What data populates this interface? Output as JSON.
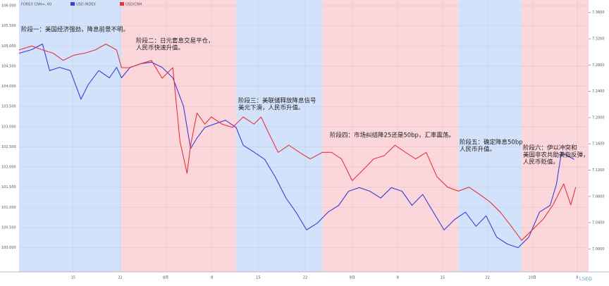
{
  "chart_data": {
    "type": "line",
    "title": "FOREX CNH=, 60",
    "xlim": [
      0,
      80
    ],
    "xticks": [
      {
        "value": 7.6,
        "label": "15"
      },
      {
        "value": 14.2,
        "label": "22"
      },
      {
        "value": 20.6,
        "label": "8月"
      },
      {
        "value": 27.1,
        "label": "8"
      },
      {
        "value": 33.6,
        "label": "15"
      },
      {
        "value": 40.2,
        "label": "22"
      },
      {
        "value": 46.8,
        "label": "9月"
      },
      {
        "value": 53.2,
        "label": "8"
      },
      {
        "value": 59.5,
        "label": "15"
      },
      {
        "value": 65.8,
        "label": "22"
      },
      {
        "value": 72.1,
        "label": "10月"
      },
      {
        "value": 78.4,
        "label": "8"
      }
    ],
    "ylim": [
      99.4,
      106.14
    ],
    "yticks": [
      {
        "value": 100,
        "label": "100.000"
      },
      {
        "value": 100.5,
        "label": "100.500"
      },
      {
        "value": 101,
        "label": "101.000"
      },
      {
        "value": 101.5,
        "label": "101.500"
      },
      {
        "value": 102,
        "label": "102.000"
      },
      {
        "value": 102.5,
        "label": "102.500"
      },
      {
        "value": 103,
        "label": "103.000"
      },
      {
        "value": 103.5,
        "label": "103.500"
      },
      {
        "value": 104,
        "label": "104.000"
      },
      {
        "value": 104.5,
        "label": "104.500"
      },
      {
        "value": 105,
        "label": "105.000"
      },
      {
        "value": 105.5,
        "label": "105.500"
      },
      {
        "value": 106,
        "label": "106.000"
      }
    ],
    "y2lim": [
      6.965,
      7.379
    ],
    "y2ticks": [
      {
        "value": 7,
        "label": "7.0000"
      },
      {
        "value": 7.04,
        "label": "7.0400"
      },
      {
        "value": 7.08,
        "label": "7.0800"
      },
      {
        "value": 7.12,
        "label": "7.1200"
      },
      {
        "value": 7.16,
        "label": "7.1600"
      },
      {
        "value": 7.2,
        "label": "7.2000"
      },
      {
        "value": 7.24,
        "label": "7.2400"
      },
      {
        "value": 7.28,
        "label": "7.2800"
      },
      {
        "value": 7.32,
        "label": "7.3200"
      },
      {
        "value": 7.36,
        "label": "7.3600"
      }
    ],
    "grid": true,
    "series": [
      {
        "name": "USD INDEX",
        "color": "#3a3fd6",
        "x": [
          0,
          1.8,
          3.3,
          4.3,
          5.7,
          7.2,
          8.7,
          9.7,
          11.2,
          12.7,
          13.7,
          14.4,
          15.6,
          17.1,
          18.6,
          20.1,
          21.6,
          23.1,
          24.1,
          25.0,
          26.1,
          27.5,
          29.0,
          30.5,
          31.5,
          33.0,
          34.5,
          36.0,
          37.5,
          38.9,
          40.4,
          41.9,
          43.4,
          44.9,
          46.3,
          47.8,
          49.3,
          50.8,
          52.3,
          53.8,
          55.2,
          56.7,
          58.2,
          59.7,
          61.2,
          62.7,
          64.2,
          65.6,
          67.1,
          68.6,
          70.1,
          71.6,
          73.1,
          74.6,
          75.5,
          76.2,
          77.0,
          78.0
        ],
        "values": [
          104.82,
          104.91,
          105.05,
          104.39,
          104.47,
          104.39,
          103.68,
          104.04,
          104.39,
          104.21,
          104.47,
          104.21,
          104.47,
          104.56,
          104.6,
          104.47,
          104.21,
          103.51,
          102.46,
          102.72,
          102.98,
          103.07,
          103.16,
          102.98,
          102.54,
          102.37,
          102.19,
          101.75,
          101.23,
          100.88,
          100.44,
          100.61,
          100.88,
          101.05,
          101.4,
          101.49,
          101.4,
          101.23,
          101.49,
          101.4,
          101.05,
          101.32,
          100.88,
          100.44,
          100.7,
          100.88,
          100.53,
          100.79,
          100.26,
          100.09,
          100.0,
          100.26,
          100.88,
          101.05,
          101.58,
          102.37,
          102.28,
          102.19
        ]
      },
      {
        "name": "USD/CNH",
        "color": "#e5343b",
        "axis": "y2",
        "x": [
          0,
          1.8,
          3.3,
          4.8,
          6.2,
          7.7,
          9.2,
          10.7,
          12.2,
          13.7,
          14.4,
          15.6,
          17.1,
          18.6,
          20.1,
          21.6,
          22.6,
          23.6,
          24.1,
          25.0,
          26.1,
          27.0,
          28.5,
          30.0,
          31.5,
          33.0,
          34.0,
          34.9,
          36.4,
          37.9,
          39.4,
          40.9,
          42.6,
          43.9,
          45.3,
          46.8,
          48.3,
          49.8,
          51.3,
          52.8,
          54.3,
          55.7,
          57.2,
          58.7,
          60.2,
          61.7,
          63.2,
          64.7,
          66.1,
          67.6,
          69.1,
          70.6,
          72.1,
          73.6,
          75.0,
          76.5,
          77.5,
          78.2
        ],
        "values": [
          7.303,
          7.309,
          7.303,
          7.298,
          7.287,
          7.295,
          7.298,
          7.303,
          7.312,
          7.303,
          7.276,
          7.276,
          7.282,
          7.287,
          7.26,
          7.276,
          7.164,
          7.115,
          7.158,
          7.207,
          7.19,
          7.201,
          7.19,
          7.185,
          7.201,
          7.19,
          7.201,
          7.18,
          7.147,
          7.158,
          7.147,
          7.137,
          7.147,
          7.147,
          7.137,
          7.104,
          7.12,
          7.137,
          7.142,
          7.158,
          7.147,
          7.137,
          7.147,
          7.11,
          7.094,
          7.088,
          7.094,
          7.083,
          7.072,
          7.056,
          7.035,
          7.013,
          7.029,
          7.045,
          7.067,
          7.099,
          7.067,
          7.094
        ]
      }
    ],
    "phases": [
      {
        "start": 0,
        "end": 14.4,
        "color": "#d3e2fb",
        "label": [
          "阶段一：美国经济强劲，降息前景不明。"
        ]
      },
      {
        "start": 14.4,
        "end": 30.5,
        "color": "#fbd6da",
        "label": [
          "阶段二：日元套息交易平仓，",
          "人民币快速升值。"
        ]
      },
      {
        "start": 30.5,
        "end": 42.6,
        "color": "#d3e2fb",
        "label": [
          "阶段三：美联储释放降息信号",
          "美元下滑，人民币升值。"
        ]
      },
      {
        "start": 42.6,
        "end": 61.7,
        "color": "#fbd6da",
        "label": [
          "阶段四：市场纠结降25还是50bp，汇率震荡。"
        ]
      },
      {
        "start": 61.7,
        "end": 70.6,
        "color": "#d3e2fb",
        "label": [
          "阶段五：确定降息50bp",
          "人民币升值。"
        ]
      },
      {
        "start": 70.6,
        "end": 80,
        "color": "#fbd6da",
        "label": [
          "阶段六：伊以冲突和",
          "美国非农共助美指反弹，",
          "人民币贬值。"
        ]
      }
    ],
    "watermark": "LSEG"
  }
}
